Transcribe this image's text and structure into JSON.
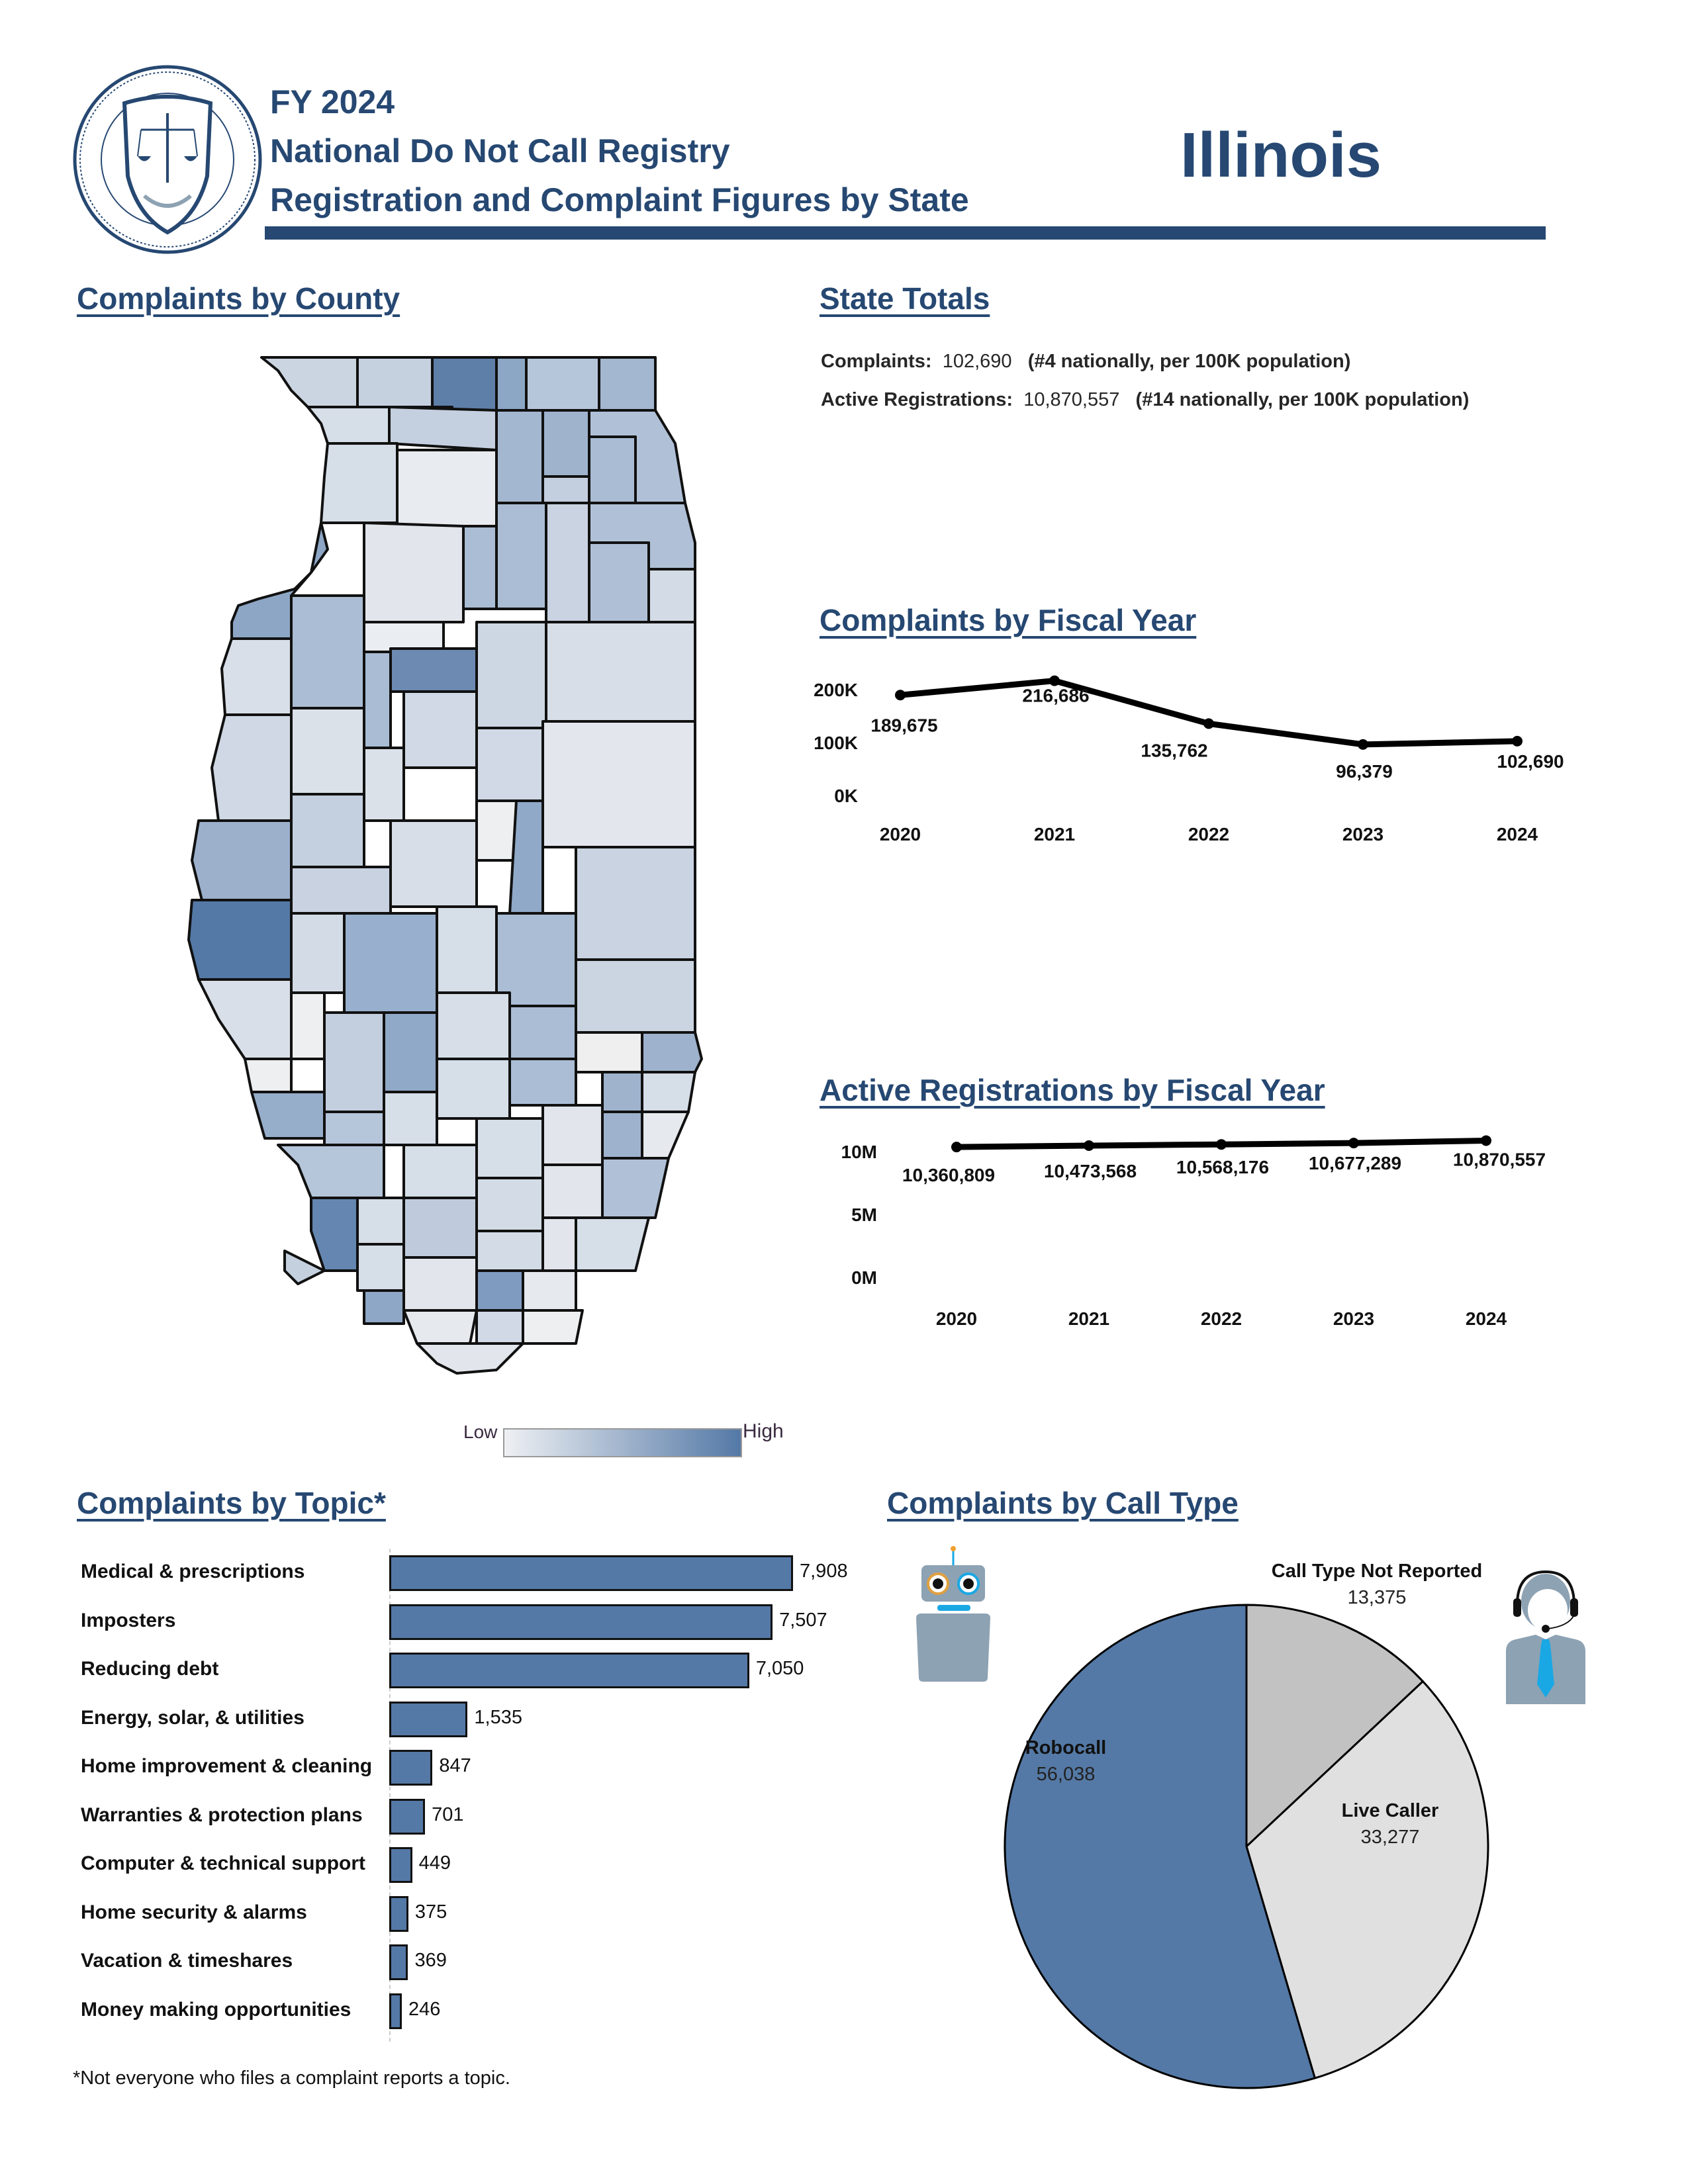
{
  "header": {
    "fiscal_year": "FY 2024",
    "registry_name": "National Do Not Call Registry",
    "subtitle": "Registration and Complaint Figures by State",
    "state": "Illinois",
    "seal_icon": "ftc-seal-icon"
  },
  "colors": {
    "navy": "#264872",
    "bar_fill": "#5479a6",
    "robocall": "#5479a6",
    "live_caller": "#e1e0e1",
    "not_reported": "#c3c2c3",
    "map_low": "#eef0f3",
    "map_high": "#5479a6",
    "icon_gray": "#8da2b3",
    "icon_blue": "#1aa8e4"
  },
  "county_map": {
    "title": "Complaints by County",
    "legend": {
      "low_label": "Low",
      "high_label": "High"
    }
  },
  "state_totals": {
    "title": "State Totals",
    "complaints_label": "Complaints:",
    "complaints_value": "102,690",
    "complaints_rank": "(#4 nationally, per 100K population)",
    "registrations_label": "Active Registrations:",
    "registrations_value": "10,870,557",
    "registrations_rank": "(#14 nationally, per 100K population)"
  },
  "chart_data": [
    {
      "id": "complaints_by_fy",
      "type": "line",
      "title": "Complaints by Fiscal Year",
      "x": [
        "2020",
        "2021",
        "2022",
        "2023",
        "2024"
      ],
      "values": [
        189675,
        216686,
        135762,
        96379,
        102690
      ],
      "labels": [
        "189,675",
        "216,686",
        "135,762",
        "96,379",
        "102,690"
      ],
      "yticks": [
        "0K",
        "100K",
        "200K"
      ],
      "ytick_values": [
        0,
        100000,
        200000
      ],
      "ylim": [
        0,
        200000
      ],
      "xlabel": "",
      "ylabel": "",
      "grid": false,
      "legend": "none"
    },
    {
      "id": "registrations_by_fy",
      "type": "line",
      "title": "Active Registrations by Fiscal Year",
      "x": [
        "2020",
        "2021",
        "2022",
        "2023",
        "2024"
      ],
      "values": [
        10360809,
        10473568,
        10568176,
        10677289,
        10870557
      ],
      "labels": [
        "10,360,809",
        "10,473,568",
        "10,568,176",
        "10,677,289",
        "10,870,557"
      ],
      "yticks": [
        "0M",
        "5M",
        "10M"
      ],
      "ytick_values": [
        0,
        5000000,
        10000000
      ],
      "ylim": [
        0,
        10000000
      ],
      "xlabel": "",
      "ylabel": "",
      "grid": false,
      "legend": "none"
    },
    {
      "id": "complaints_by_topic",
      "type": "bar",
      "orientation": "horizontal",
      "title": "Complaints by Topic*",
      "categories": [
        "Medical & prescriptions",
        "Imposters",
        "Reducing debt",
        "Energy, solar, & utilities",
        "Home improvement & cleaning",
        "Warranties & protection plans",
        "Computer & technical support",
        "Home security & alarms",
        "Vacation & timeshares",
        "Money making opportunities"
      ],
      "values": [
        7908,
        7507,
        7050,
        1535,
        847,
        701,
        449,
        375,
        369,
        246
      ],
      "labels": [
        "7,908",
        "7,507",
        "7,050",
        "1,535",
        "847",
        "701",
        "449",
        "375",
        "369",
        "246"
      ],
      "footnote": "*Not everyone who files a complaint reports a topic.",
      "xlabel": "",
      "ylabel": "",
      "grid": false,
      "legend": "none"
    },
    {
      "id": "complaints_by_call_type",
      "type": "pie",
      "title": "Complaints by Call Type",
      "categories": [
        "Call Type Not Reported",
        "Live Caller",
        "Robocall"
      ],
      "values": [
        13375,
        33277,
        56038
      ],
      "labels": [
        "13,375",
        "33,277",
        "56,038"
      ],
      "legend": "none"
    }
  ],
  "icons": {
    "robot": "robot-icon",
    "live_agent": "headset-agent-icon"
  }
}
